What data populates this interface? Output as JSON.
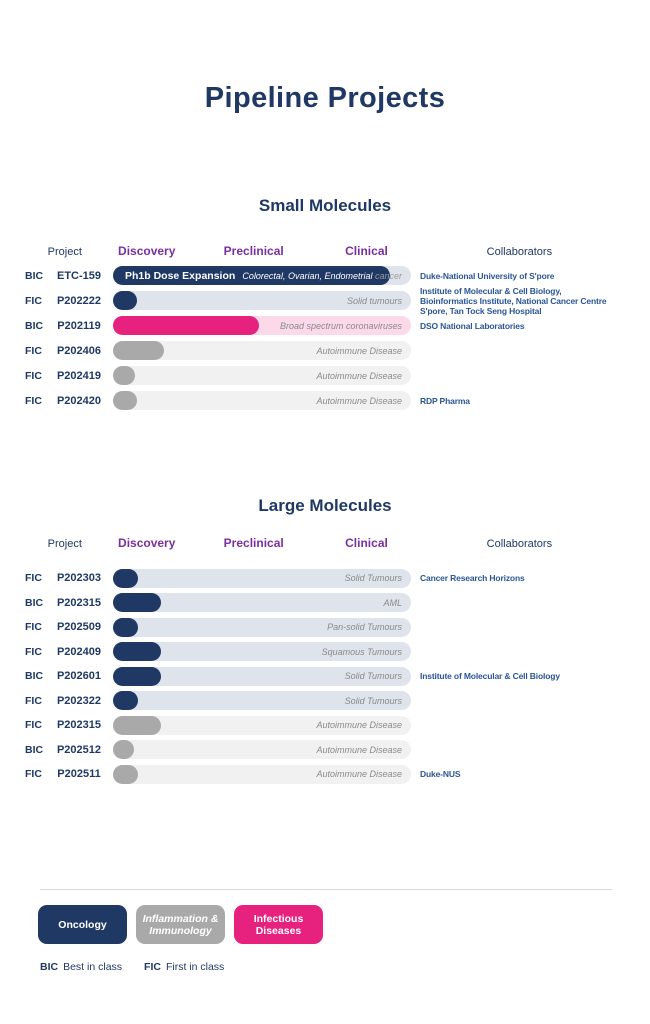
{
  "page": {
    "title": "Pipeline Projects"
  },
  "columns": {
    "project": "Project",
    "stages": [
      "Discovery",
      "Preclinical",
      "Clinical"
    ],
    "collaborators": "Collaborators"
  },
  "colors": {
    "navy": "#1F3864",
    "purple": "#7A2F9E",
    "pink": "#E6217E",
    "gray": "#A9A9A9",
    "track_oncology": "#DEE3EC",
    "track_inflammation": "#F1F1F1",
    "track_infectious": "#FBD9E9",
    "indication_text": "#8A8A8A",
    "collaborator_text": "#2B5597"
  },
  "chart_data": [
    {
      "type": "bar",
      "title": "Small Molecules",
      "stage_axis": [
        "Discovery",
        "Preclinical",
        "Clinical"
      ],
      "rows": [
        {
          "class_label": "BIC",
          "project": "ETC-159",
          "progress_pct": 93,
          "bar_label": "Ph1b Dose Expansion",
          "bar_color": "#1F3864",
          "track_color": "#DEE3EC",
          "indication": "Colorectal, Ovarian, Endometrial",
          "indication_tail": " cancer",
          "indication_color": "#FFFFFF",
          "indication_tail_color": "#9A9A9A",
          "collaborators": "Duke-National University of S'pore",
          "therapy_area": "Oncology"
        },
        {
          "class_label": "FIC",
          "project": "P202222",
          "progress_pct": 8,
          "bar_label": "",
          "bar_color": "#1F3864",
          "track_color": "#DEE3EC",
          "indication": "Solid tumours",
          "indication_tail": "",
          "indication_color": "#8A8A8A",
          "indication_tail_color": "#8A8A8A",
          "collaborators": "Institute of Molecular & Cell Biology,\nBioinformatics Institute, National Cancer Centre\nS'pore, Tan Tock Seng Hospital",
          "therapy_area": "Oncology"
        },
        {
          "class_label": "BIC",
          "project": "P202119",
          "progress_pct": 49,
          "bar_label": "",
          "bar_color": "#E6217E",
          "track_color": "#FBD9E9",
          "indication": "Broad spectrum coronaviruses",
          "indication_tail": "",
          "indication_color": "#8A8A8A",
          "indication_tail_color": "#8A8A8A",
          "collaborators": "DSO National Laboratories",
          "therapy_area": "Infectious Diseases"
        },
        {
          "class_label": "FIC",
          "project": "P202406",
          "progress_pct": 17,
          "bar_label": "",
          "bar_color": "#A9A9A9",
          "track_color": "#F1F1F1",
          "indication": "Autoimmune Disease",
          "indication_tail": "",
          "indication_color": "#8A8A8A",
          "indication_tail_color": "#8A8A8A",
          "collaborators": "",
          "therapy_area": "Inflammation & Immunology"
        },
        {
          "class_label": "FIC",
          "project": "P202419",
          "progress_pct": 7.5,
          "bar_label": "",
          "bar_color": "#A9A9A9",
          "track_color": "#F1F1F1",
          "indication": "Autoimmune Disease",
          "indication_tail": "",
          "indication_color": "#8A8A8A",
          "indication_tail_color": "#8A8A8A",
          "collaborators": "",
          "therapy_area": "Inflammation & Immunology"
        },
        {
          "class_label": "FIC",
          "project": "P202420",
          "progress_pct": 8,
          "bar_label": "",
          "bar_color": "#A9A9A9",
          "track_color": "#F1F1F1",
          "indication": "Autoimmune Disease",
          "indication_tail": "",
          "indication_color": "#8A8A8A",
          "indication_tail_color": "#8A8A8A",
          "collaborators": "RDP Pharma",
          "therapy_area": "Inflammation & Immunology"
        }
      ]
    },
    {
      "type": "bar",
      "title": "Large Molecules",
      "stage_axis": [
        "Discovery",
        "Preclinical",
        "Clinical"
      ],
      "rows": [
        {
          "class_label": "FIC",
          "project": "P202303",
          "progress_pct": 8.5,
          "bar_label": "",
          "bar_color": "#1F3864",
          "track_color": "#DEE3EC",
          "indication": "Solid Tumours",
          "indication_tail": "",
          "indication_color": "#8A8A8A",
          "indication_tail_color": "#8A8A8A",
          "collaborators": "Cancer Research Horizons",
          "therapy_area": "Oncology"
        },
        {
          "class_label": "BIC",
          "project": "P202315",
          "progress_pct": 16,
          "bar_label": "",
          "bar_color": "#1F3864",
          "track_color": "#DEE3EC",
          "indication": "AML",
          "indication_tail": "",
          "indication_color": "#8A8A8A",
          "indication_tail_color": "#8A8A8A",
          "collaborators": "",
          "therapy_area": "Oncology"
        },
        {
          "class_label": "FIC",
          "project": "P202509",
          "progress_pct": 8.5,
          "bar_label": "",
          "bar_color": "#1F3864",
          "track_color": "#DEE3EC",
          "indication": "Pan-solid Tumours",
          "indication_tail": "",
          "indication_color": "#8A8A8A",
          "indication_tail_color": "#8A8A8A",
          "collaborators": "",
          "therapy_area": "Oncology"
        },
        {
          "class_label": "FIC",
          "project": "P202409",
          "progress_pct": 16,
          "bar_label": "",
          "bar_color": "#1F3864",
          "track_color": "#DEE3EC",
          "indication": "Squamous Tumours",
          "indication_tail": "",
          "indication_color": "#8A8A8A",
          "indication_tail_color": "#8A8A8A",
          "collaborators": "",
          "therapy_area": "Oncology"
        },
        {
          "class_label": "BIC",
          "project": "P202601",
          "progress_pct": 16,
          "bar_label": "",
          "bar_color": "#1F3864",
          "track_color": "#DEE3EC",
          "indication": "Solid Tumours",
          "indication_tail": "",
          "indication_color": "#8A8A8A",
          "indication_tail_color": "#8A8A8A",
          "collaborators": "Institute of Molecular & Cell Biology",
          "therapy_area": "Oncology"
        },
        {
          "class_label": "FIC",
          "project": "P202322",
          "progress_pct": 8.5,
          "bar_label": "",
          "bar_color": "#1F3864",
          "track_color": "#DEE3EC",
          "indication": "Solid Tumours",
          "indication_tail": "",
          "indication_color": "#8A8A8A",
          "indication_tail_color": "#8A8A8A",
          "collaborators": "",
          "therapy_area": "Oncology"
        },
        {
          "class_label": "FIC",
          "project": "P202315",
          "progress_pct": 16,
          "bar_label": "",
          "bar_color": "#A9A9A9",
          "track_color": "#F1F1F1",
          "indication": "Autoimmune Disease",
          "indication_tail": "",
          "indication_color": "#8A8A8A",
          "indication_tail_color": "#8A8A8A",
          "collaborators": "",
          "therapy_area": "Inflammation & Immunology"
        },
        {
          "class_label": "BIC",
          "project": "P202512",
          "progress_pct": 7,
          "bar_label": "",
          "bar_color": "#A9A9A9",
          "track_color": "#F1F1F1",
          "indication": "Autoimmune Disease",
          "indication_tail": "",
          "indication_color": "#8A8A8A",
          "indication_tail_color": "#8A8A8A",
          "collaborators": "",
          "therapy_area": "Inflammation & Immunology"
        },
        {
          "class_label": "FIC",
          "project": "P202511",
          "progress_pct": 8.5,
          "bar_label": "",
          "bar_color": "#A9A9A9",
          "track_color": "#F1F1F1",
          "indication": "Autoimmune Disease",
          "indication_tail": "",
          "indication_color": "#8A8A8A",
          "indication_tail_color": "#8A8A8A",
          "collaborators": "Duke-NUS",
          "therapy_area": "Inflammation & Immunology"
        }
      ]
    }
  ],
  "legend": {
    "badges": [
      {
        "name": "oncology",
        "label": "Oncology",
        "color": "#1F3864",
        "italic": false
      },
      {
        "name": "inflammation-immunology",
        "label": "Inflammation &\nImmunology",
        "color": "#A9A9A9",
        "italic": true
      },
      {
        "name": "infectious-diseases",
        "label": "Infectious\nDiseases",
        "color": "#E6217E",
        "italic": false
      }
    ],
    "abbreviations": [
      {
        "abbr": "BIC",
        "label": "Best in class"
      },
      {
        "abbr": "FIC",
        "label": "First in class"
      }
    ]
  }
}
